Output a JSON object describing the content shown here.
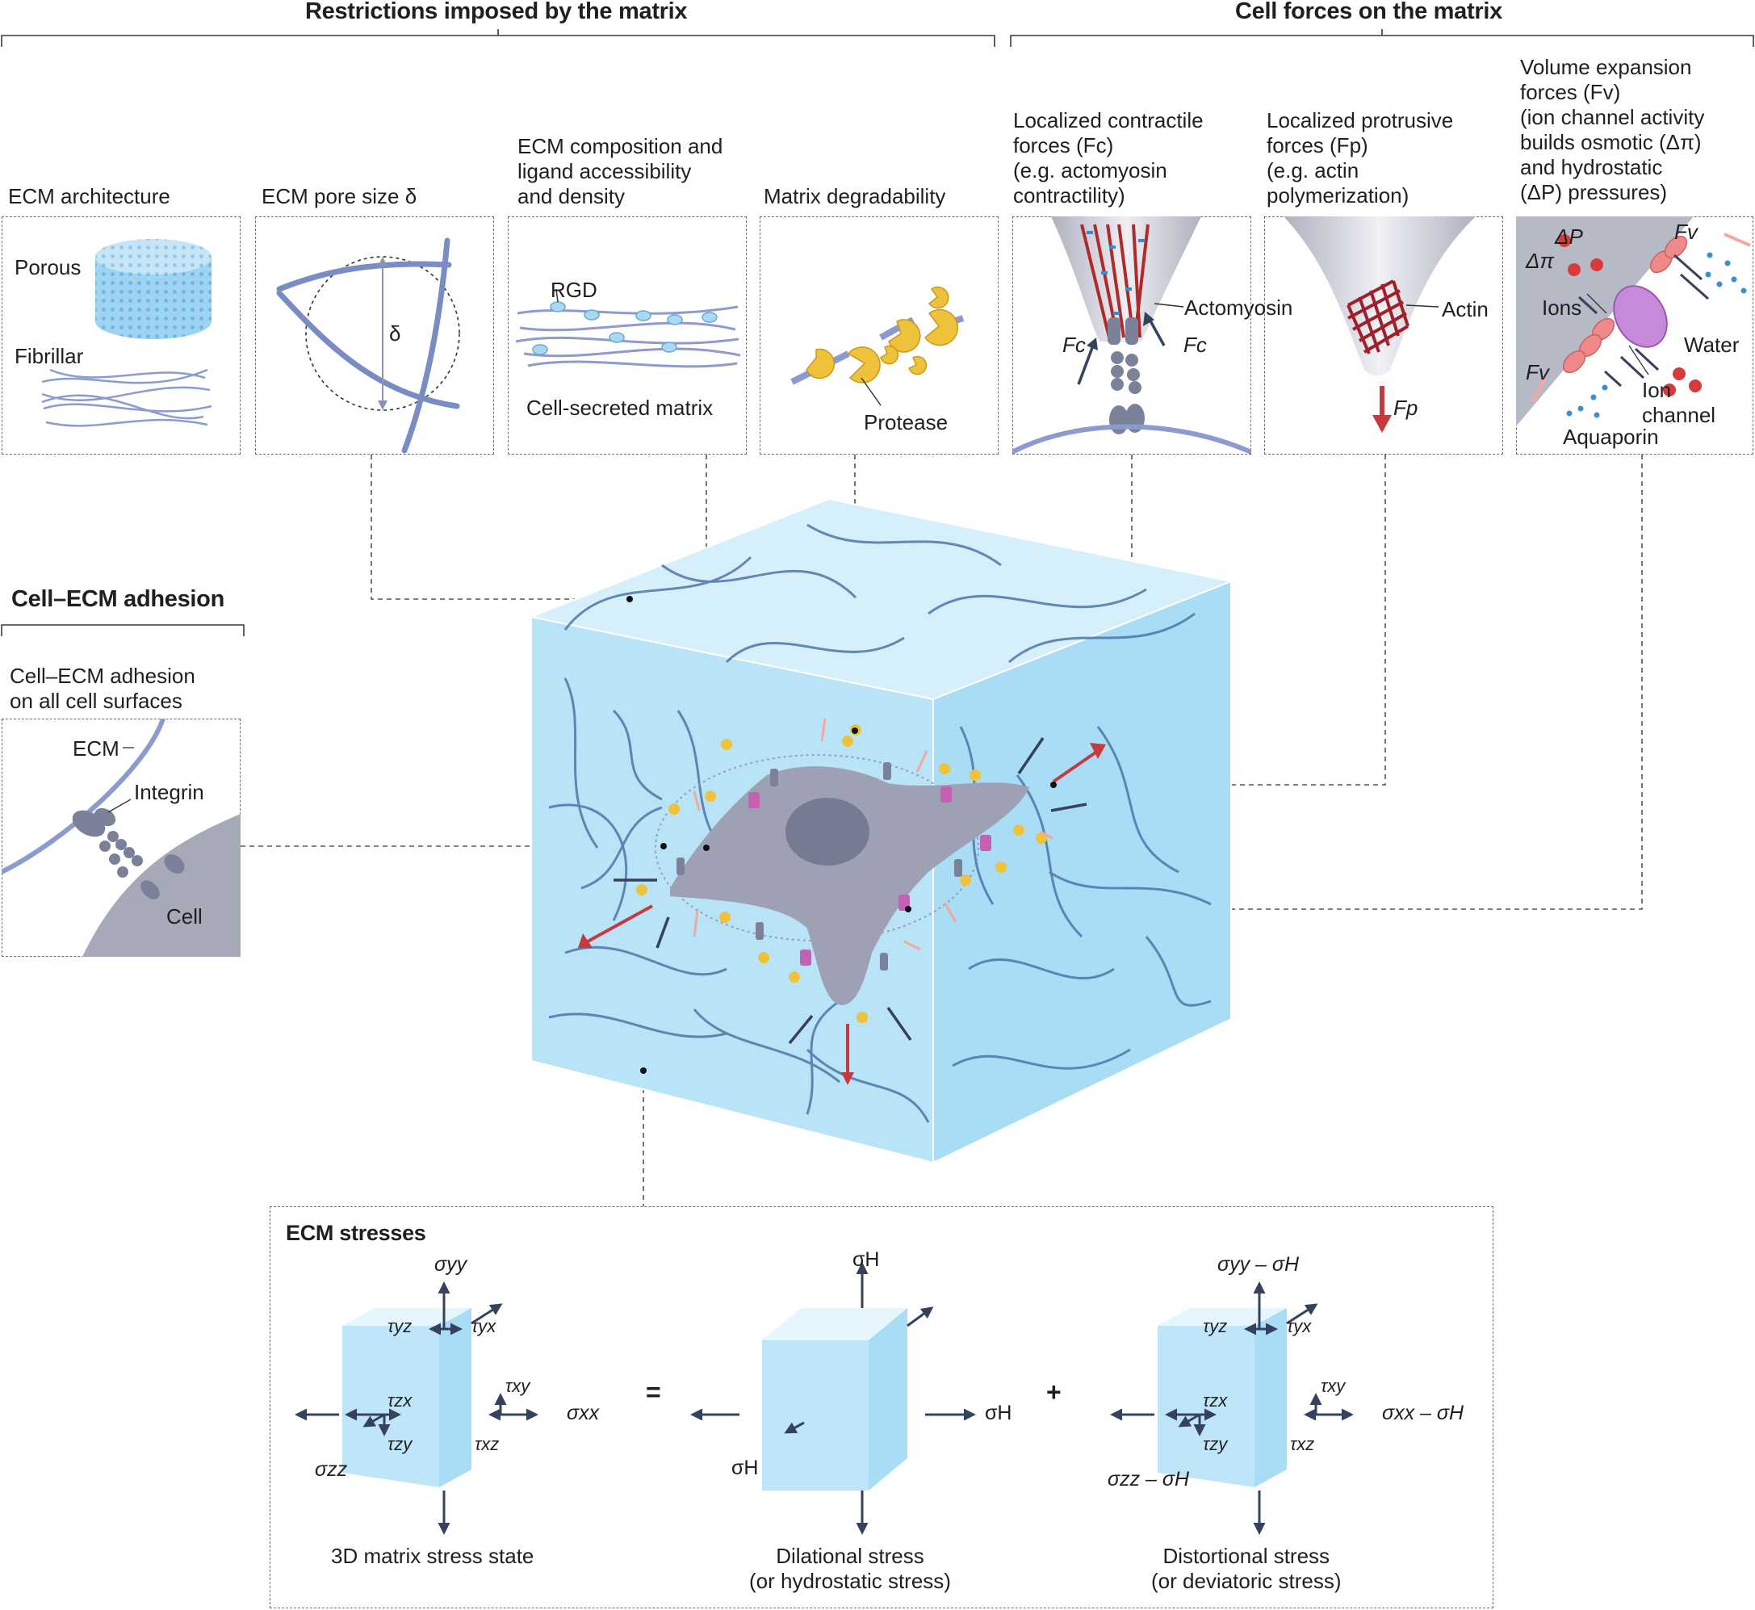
{
  "sections": {
    "restrictions": "Restrictions imposed by the matrix",
    "cell_forces": "Cell forces on the matrix",
    "adhesion": "Cell–ECM adhesion",
    "stresses": "ECM stresses"
  },
  "panels": {
    "architecture": {
      "title": "ECM architecture",
      "porous": "Porous",
      "fibrillar": "Fibrillar"
    },
    "pore_size": {
      "title": "ECM pore size δ",
      "delta": "δ"
    },
    "composition": {
      "title": "ECM composition and\nligand accessibility\nand density",
      "rgd": "RGD",
      "secreted": "Cell-secreted matrix"
    },
    "degradability": {
      "title": "Matrix degradability",
      "protease": "Protease"
    },
    "contractile": {
      "title": "Localized contractile\nforces (Fc)\n(e.g. actomyosin\ncontractility)",
      "actomyosin": "Actomyosin",
      "f_left": "Fc",
      "f_right": "Fc"
    },
    "protrusive": {
      "title": "Localized protrusive\nforces (Fp)\n(e.g. actin\npolymerization)",
      "actin": "Actin",
      "force": "Fp"
    },
    "volume": {
      "title": "Volume expansion\nforces (Fv)\n(ion channel activity\nbuilds osmotic (Δπ)\nand hydrostatic\n(ΔP) pressures)",
      "dp": "ΔP",
      "dpi": "Δπ",
      "fv_top": "Fv",
      "fv_left": "Fv",
      "ions": "Ions",
      "water": "Water",
      "ion_channel": "Ion\nchannel",
      "aquaporin": "Aquaporin"
    },
    "adhesion": {
      "title": "Cell–ECM adhesion\non all cell surfaces",
      "ecm": "ECM",
      "integrin": "Integrin",
      "cell": "Cell"
    }
  },
  "stresses": {
    "state": {
      "caption": "3D matrix stress state",
      "yy": "σyy",
      "xx": "σxx",
      "zz": "σzz",
      "tyz": "τyz",
      "tyx": "τyx",
      "tzx": "τzx",
      "tzy": "τzy",
      "txy": "τxy",
      "txz": "τxz"
    },
    "equals": "=",
    "plus": "+",
    "dilational": {
      "caption": "Dilational stress\n(or hydrostatic stress)",
      "top": "σH",
      "right": "σH",
      "left": "σH"
    },
    "distortional": {
      "caption": "Distortional stress\n(or deviatoric stress)",
      "yy": "σyy – σH",
      "xx": "σxx – σH",
      "zz": "σzz – σH",
      "tyz": "τyz",
      "tyx": "τyx",
      "tzx": "τzx",
      "tzy": "τzy",
      "txy": "τxy",
      "txz": "τxz"
    }
  },
  "colors": {
    "fiber": "#8fa0c8",
    "cube": "#bfe6f8",
    "cell": "#a9acbb",
    "protease": "#efc23c",
    "force_red": "#c8383f",
    "force_pink": "#f4a6a0",
    "arrow_dark": "#34425e",
    "dash": "#6d6d6d"
  }
}
